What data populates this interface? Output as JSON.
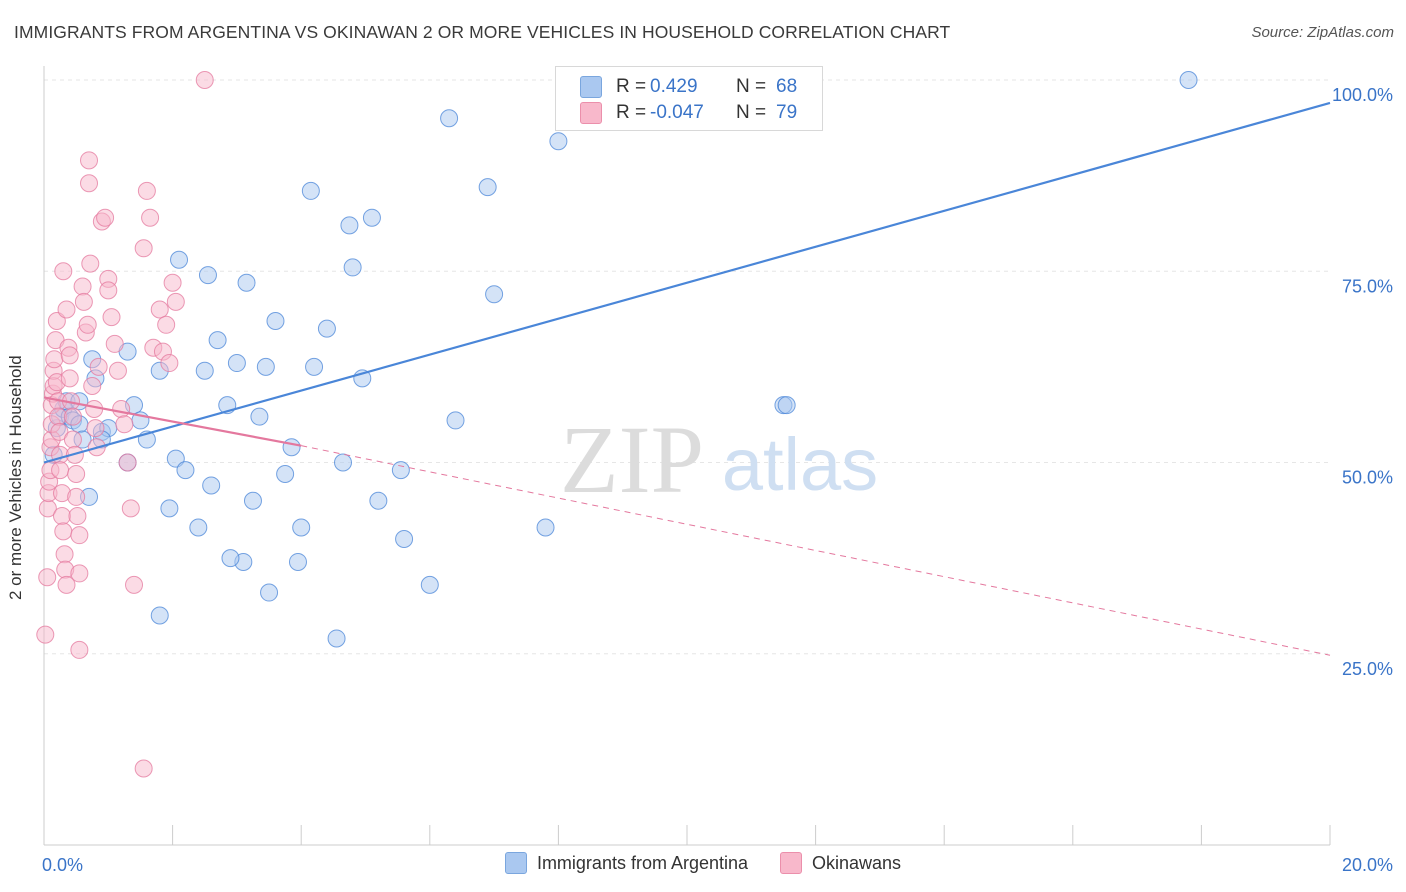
{
  "header": {
    "title": "IMMIGRANTS FROM ARGENTINA VS OKINAWAN 2 OR MORE VEHICLES IN HOUSEHOLD CORRELATION CHART",
    "source": "Source: ZipAtlas.com"
  },
  "watermark": {
    "zip": "ZIP",
    "atlas": "atlas"
  },
  "legend_top": {
    "rows": [
      {
        "r_label": "R =",
        "r_value": "0.429",
        "n_label": "N =",
        "n_value": "68",
        "color": "#aac8f0"
      },
      {
        "r_label": "R =",
        "r_value": "-0.047",
        "n_label": "N =",
        "n_value": "79",
        "color": "#f8b8cb"
      }
    ]
  },
  "legend_bottom": {
    "items": [
      {
        "label": "Immigrants from Argentina",
        "color": "#aac8f0"
      },
      {
        "label": "Okinawans",
        "color": "#f8b8cb"
      }
    ]
  },
  "chart_data": {
    "type": "scatter",
    "title": "IMMIGRANTS FROM ARGENTINA VS OKINAWAN 2 OR MORE VEHICLES IN HOUSEHOLD CORRELATION CHART",
    "xlabel": "",
    "ylabel": "2 or more Vehicles in Household",
    "xlim": [
      0,
      20
    ],
    "ylim": [
      0,
      100
    ],
    "x_tick_labels": [
      {
        "value": 0,
        "label": "0.0%"
      },
      {
        "value": 20,
        "label": "20.0%"
      }
    ],
    "y_tick_labels": [
      {
        "value": 25,
        "label": "25.0%"
      },
      {
        "value": 50,
        "label": "50.0%"
      },
      {
        "value": 75,
        "label": "75.0%"
      },
      {
        "value": 100,
        "label": "100.0%"
      }
    ],
    "grid": true,
    "series": [
      {
        "name": "Immigrants from Argentina",
        "color": "#4a86d8",
        "fill": "#aac8f0",
        "points": [
          [
            0.15,
            51
          ],
          [
            0.2,
            54.5
          ],
          [
            0.25,
            56
          ],
          [
            0.3,
            57
          ],
          [
            0.35,
            58
          ],
          [
            0.4,
            56
          ],
          [
            0.45,
            55.5
          ],
          [
            0.55,
            55
          ],
          [
            0.6,
            53
          ],
          [
            0.7,
            45.5
          ],
          [
            0.8,
            61
          ],
          [
            0.75,
            63.5
          ],
          [
            0.9,
            54
          ],
          [
            1.0,
            54.5
          ],
          [
            1.3,
            50
          ],
          [
            1.4,
            57.5
          ],
          [
            1.5,
            55.5
          ],
          [
            1.6,
            53
          ],
          [
            1.8,
            62
          ],
          [
            1.95,
            44
          ],
          [
            2.05,
            50.5
          ],
          [
            2.2,
            49
          ],
          [
            2.1,
            76.5
          ],
          [
            2.4,
            41.5
          ],
          [
            2.5,
            62
          ],
          [
            2.55,
            74.5
          ],
          [
            2.6,
            47
          ],
          [
            2.7,
            66
          ],
          [
            2.85,
            57.5
          ],
          [
            3.0,
            63
          ],
          [
            3.1,
            37
          ],
          [
            3.15,
            73.5
          ],
          [
            3.25,
            45
          ],
          [
            3.35,
            56
          ],
          [
            3.45,
            62.5
          ],
          [
            3.5,
            33
          ],
          [
            3.6,
            68.5
          ],
          [
            3.75,
            48.5
          ],
          [
            3.85,
            52
          ],
          [
            3.95,
            37
          ],
          [
            4.0,
            41.5
          ],
          [
            4.15,
            85.5
          ],
          [
            4.2,
            62.5
          ],
          [
            4.4,
            67.5
          ],
          [
            4.55,
            27
          ],
          [
            4.65,
            50
          ],
          [
            4.75,
            81
          ],
          [
            4.8,
            75.5
          ],
          [
            4.95,
            61
          ],
          [
            5.1,
            82
          ],
          [
            5.2,
            45
          ],
          [
            5.55,
            49
          ],
          [
            5.6,
            40
          ],
          [
            6.0,
            34
          ],
          [
            6.3,
            95
          ],
          [
            6.4,
            55.5
          ],
          [
            6.9,
            86
          ],
          [
            7.0,
            72
          ],
          [
            7.8,
            41.5
          ],
          [
            8.0,
            92
          ],
          [
            1.8,
            30
          ],
          [
            2.9,
            37.5
          ],
          [
            1.3,
            64.5
          ],
          [
            0.55,
            58
          ],
          [
            0.9,
            53
          ],
          [
            11.5,
            57.5
          ],
          [
            11.55,
            57.5
          ],
          [
            17.8,
            100
          ]
        ]
      },
      {
        "name": "Okinawans",
        "color": "#e4789e",
        "fill": "#f8b8cb",
        "points": [
          [
            0.02,
            27.5
          ],
          [
            0.05,
            35
          ],
          [
            0.06,
            44
          ],
          [
            0.07,
            46
          ],
          [
            0.08,
            47.5
          ],
          [
            0.1,
            49
          ],
          [
            0.1,
            52
          ],
          [
            0.12,
            53
          ],
          [
            0.12,
            55
          ],
          [
            0.12,
            57.5
          ],
          [
            0.14,
            59
          ],
          [
            0.15,
            60
          ],
          [
            0.15,
            62
          ],
          [
            0.16,
            63.5
          ],
          [
            0.18,
            66
          ],
          [
            0.2,
            68.5
          ],
          [
            0.2,
            60.5
          ],
          [
            0.22,
            58
          ],
          [
            0.22,
            56
          ],
          [
            0.24,
            54
          ],
          [
            0.25,
            51
          ],
          [
            0.25,
            49
          ],
          [
            0.28,
            46
          ],
          [
            0.28,
            43
          ],
          [
            0.3,
            41
          ],
          [
            0.32,
            38
          ],
          [
            0.33,
            36
          ],
          [
            0.35,
            34
          ],
          [
            0.3,
            75
          ],
          [
            0.35,
            70
          ],
          [
            0.38,
            65
          ],
          [
            0.4,
            64
          ],
          [
            0.4,
            61
          ],
          [
            0.42,
            58
          ],
          [
            0.45,
            56
          ],
          [
            0.45,
            53
          ],
          [
            0.48,
            51
          ],
          [
            0.5,
            48.5
          ],
          [
            0.5,
            45.5
          ],
          [
            0.52,
            43
          ],
          [
            0.55,
            40.5
          ],
          [
            0.55,
            35.5
          ],
          [
            0.6,
            73
          ],
          [
            0.62,
            71
          ],
          [
            0.65,
            67
          ],
          [
            0.68,
            68
          ],
          [
            0.7,
            86.5
          ],
          [
            0.7,
            89.5
          ],
          [
            0.72,
            76
          ],
          [
            0.75,
            60
          ],
          [
            0.78,
            57
          ],
          [
            0.8,
            54.5
          ],
          [
            0.82,
            52
          ],
          [
            0.85,
            62.5
          ],
          [
            0.9,
            81.5
          ],
          [
            0.95,
            82
          ],
          [
            1.0,
            74
          ],
          [
            1.0,
            72.5
          ],
          [
            1.05,
            69
          ],
          [
            1.1,
            65.5
          ],
          [
            1.15,
            62
          ],
          [
            1.2,
            57
          ],
          [
            1.25,
            55
          ],
          [
            1.3,
            50
          ],
          [
            1.35,
            44
          ],
          [
            1.4,
            34
          ],
          [
            1.55,
            78
          ],
          [
            1.6,
            85.5
          ],
          [
            1.65,
            82
          ],
          [
            1.7,
            65
          ],
          [
            1.8,
            70
          ],
          [
            1.85,
            64.5
          ],
          [
            1.9,
            68
          ],
          [
            1.95,
            63
          ],
          [
            2.0,
            73.5
          ],
          [
            2.05,
            71
          ],
          [
            0.55,
            25.5
          ],
          [
            1.55,
            10
          ],
          [
            2.5,
            100
          ]
        ]
      }
    ],
    "trend_lines": [
      {
        "series": "Immigrants from Argentina",
        "x": [
          0,
          20
        ],
        "y": [
          50,
          97
        ],
        "style": "solid"
      },
      {
        "series": "Okinawans",
        "x": [
          0,
          4
        ],
        "y": [
          58.5,
          52.2
        ],
        "style": "solid"
      },
      {
        "series": "Okinawans",
        "x": [
          4,
          20
        ],
        "y": [
          52.2,
          24.8
        ],
        "style": "dashed"
      }
    ]
  }
}
